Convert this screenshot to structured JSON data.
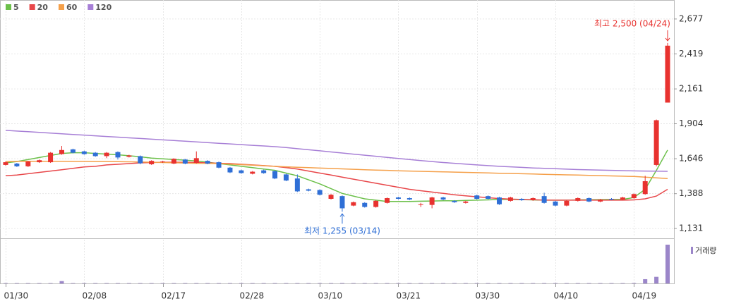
{
  "chart_data": {
    "type": "candlestick",
    "categories": [
      "01/30",
      null,
      null,
      null,
      null,
      null,
      null,
      "02/08",
      null,
      null,
      null,
      null,
      null,
      null,
      "02/17",
      null,
      null,
      null,
      null,
      null,
      null,
      "02/28",
      null,
      null,
      null,
      null,
      null,
      null,
      "03/10",
      null,
      null,
      null,
      null,
      null,
      null,
      "03/21",
      null,
      null,
      null,
      null,
      null,
      null,
      "03/30",
      null,
      null,
      null,
      null,
      null,
      null,
      "04/10",
      null,
      null,
      null,
      null,
      null,
      null,
      "04/19",
      null,
      null,
      null
    ],
    "open": [
      1600,
      1610,
      1590,
      1620,
      1620,
      1680,
      1715,
      1700,
      1690,
      1665,
      1695,
      1660,
      1665,
      1605,
      1620,
      1610,
      1640,
      1615,
      1630,
      1620,
      1580,
      1560,
      1535,
      1560,
      1555,
      1530,
      1500,
      1420,
      1415,
      1350,
      1370,
      1300,
      1320,
      1290,
      1320,
      1360,
      1355,
      1305,
      1305,
      1360,
      1335,
      1320,
      1375,
      1370,
      1360,
      1335,
      1350,
      1340,
      1370,
      1330,
      1300,
      1335,
      1355,
      1330,
      1350,
      1345,
      1355,
      1385,
      1600,
      2060
    ],
    "high": [
      1625,
      1615,
      1630,
      1640,
      1695,
      1740,
      1720,
      1705,
      1695,
      1695,
      1700,
      1675,
      1670,
      1635,
      1630,
      1650,
      1645,
      1700,
      1635,
      1625,
      1585,
      1565,
      1555,
      1565,
      1560,
      1535,
      1530,
      1425,
      1420,
      1385,
      1375,
      1330,
      1325,
      1340,
      1360,
      1365,
      1360,
      1320,
      1365,
      1365,
      1340,
      1335,
      1380,
      1375,
      1365,
      1365,
      1355,
      1360,
      1395,
      1335,
      1340,
      1360,
      1360,
      1350,
      1355,
      1365,
      1390,
      1520,
      1935,
      2500
    ],
    "low": [
      1595,
      1585,
      1585,
      1615,
      1615,
      1675,
      1685,
      1675,
      1660,
      1650,
      1640,
      1655,
      1605,
      1600,
      1615,
      1605,
      1605,
      1610,
      1605,
      1575,
      1540,
      1535,
      1530,
      1535,
      1495,
      1480,
      1400,
      1405,
      1375,
      1345,
      1255,
      1295,
      1285,
      1285,
      1315,
      1345,
      1340,
      1290,
      1280,
      1340,
      1320,
      1315,
      1345,
      1345,
      1305,
      1330,
      1335,
      1335,
      1315,
      1295,
      1295,
      1330,
      1325,
      1325,
      1340,
      1340,
      1350,
      1380,
      1590,
      2060
    ],
    "close": [
      1620,
      1590,
      1625,
      1635,
      1690,
      1710,
      1690,
      1680,
      1665,
      1690,
      1655,
      1670,
      1612,
      1630,
      1625,
      1645,
      1610,
      1650,
      1610,
      1580,
      1545,
      1540,
      1550,
      1540,
      1500,
      1485,
      1405,
      1410,
      1380,
      1380,
      1280,
      1325,
      1290,
      1335,
      1355,
      1350,
      1345,
      1310,
      1360,
      1345,
      1325,
      1330,
      1350,
      1350,
      1310,
      1360,
      1340,
      1355,
      1320,
      1300,
      1335,
      1355,
      1330,
      1345,
      1345,
      1360,
      1385,
      1480,
      1930,
      2480
    ],
    "up_color": "#e8322f",
    "down_color": "#2f6fd6",
    "series": [
      {
        "name": "5",
        "color": "#6cc04a",
        "values": [
          1615,
          1625,
          1640,
          1655,
          1670,
          1685,
          1690,
          1690,
          1685,
          1680,
          1675,
          1668,
          1660,
          1650,
          1645,
          1640,
          1635,
          1630,
          1620,
          1610,
          1600,
          1590,
          1580,
          1570,
          1560,
          1540,
          1520,
          1490,
          1460,
          1425,
          1390,
          1370,
          1350,
          1340,
          1330,
          1330,
          1330,
          1332,
          1334,
          1336,
          1335,
          1338,
          1340,
          1342,
          1345,
          1345,
          1344,
          1342,
          1340,
          1340,
          1340,
          1342,
          1343,
          1344,
          1345,
          1345,
          1360,
          1420,
          1560,
          1710
        ]
      },
      {
        "name": "20",
        "color": "#e8474a",
        "values": [
          1520,
          1525,
          1535,
          1545,
          1555,
          1565,
          1575,
          1585,
          1590,
          1600,
          1605,
          1610,
          1615,
          1618,
          1620,
          1620,
          1620,
          1618,
          1615,
          1612,
          1610,
          1605,
          1600,
          1595,
          1590,
          1580,
          1570,
          1555,
          1540,
          1525,
          1510,
          1495,
          1480,
          1465,
          1450,
          1435,
          1420,
          1410,
          1400,
          1390,
          1380,
          1372,
          1365,
          1358,
          1352,
          1348,
          1345,
          1343,
          1341,
          1340,
          1340,
          1340,
          1340,
          1340,
          1340,
          1340,
          1342,
          1350,
          1370,
          1420
        ]
      },
      {
        "name": "60",
        "color": "#f5a04a",
        "values": [
          1625,
          1626,
          1627,
          1627,
          1627,
          1627,
          1626,
          1626,
          1625,
          1625,
          1624,
          1623,
          1622,
          1620,
          1618,
          1616,
          1614,
          1612,
          1611,
          1610,
          1606,
          1602,
          1598,
          1594,
          1590,
          1586,
          1583,
          1580,
          1577,
          1574,
          1571,
          1568,
          1565,
          1562,
          1560,
          1557,
          1555,
          1553,
          1551,
          1549,
          1547,
          1545,
          1543,
          1541,
          1539,
          1537,
          1535,
          1533,
          1531,
          1529,
          1527,
          1525,
          1523,
          1521,
          1519,
          1517,
          1515,
          1510,
          1505,
          1500
        ]
      },
      {
        "name": "120",
        "color": "#a77fd6",
        "values": [
          1855,
          1850,
          1845,
          1840,
          1835,
          1830,
          1825,
          1820,
          1815,
          1810,
          1805,
          1800,
          1795,
          1790,
          1785,
          1780,
          1775,
          1770,
          1765,
          1760,
          1755,
          1750,
          1745,
          1740,
          1735,
          1728,
          1720,
          1712,
          1704,
          1696,
          1688,
          1680,
          1672,
          1664,
          1656,
          1648,
          1640,
          1632,
          1625,
          1618,
          1612,
          1606,
          1600,
          1595,
          1590,
          1586,
          1582,
          1578,
          1575,
          1572,
          1569,
          1566,
          1564,
          1562,
          1560,
          1558,
          1556,
          1555,
          1554,
          1553
        ]
      }
    ],
    "volume": {
      "name": "거래량",
      "color": "#9b86c9",
      "values": [
        10,
        10,
        10,
        10,
        10,
        60,
        10,
        10,
        10,
        10,
        10,
        10,
        10,
        10,
        10,
        10,
        10,
        10,
        10,
        10,
        10,
        10,
        10,
        10,
        10,
        10,
        10,
        10,
        10,
        10,
        12,
        10,
        10,
        10,
        10,
        10,
        10,
        10,
        10,
        10,
        10,
        10,
        10,
        10,
        10,
        10,
        10,
        10,
        10,
        10,
        10,
        10,
        10,
        10,
        10,
        10,
        12,
        110,
        170,
        1000
      ]
    },
    "ylim": [
      1069,
      2817
    ],
    "yticks": [
      {
        "value": 1131,
        "label": "1,131"
      },
      {
        "value": 1388,
        "label": "1,388"
      },
      {
        "value": 1646,
        "label": "1,646"
      },
      {
        "value": 1904,
        "label": "1,904"
      },
      {
        "value": 2161,
        "label": "2,161"
      },
      {
        "value": 2419,
        "label": "2,419"
      },
      {
        "value": 2677,
        "label": "2,677"
      }
    ],
    "grid": true,
    "annotations": [
      {
        "text": "최고 2,500 (04/24)",
        "value": 2500,
        "color": "#e8322f"
      },
      {
        "text": "최저 1,255 (03/14)",
        "value": 1255,
        "color": "#2f6fd6"
      }
    ]
  }
}
